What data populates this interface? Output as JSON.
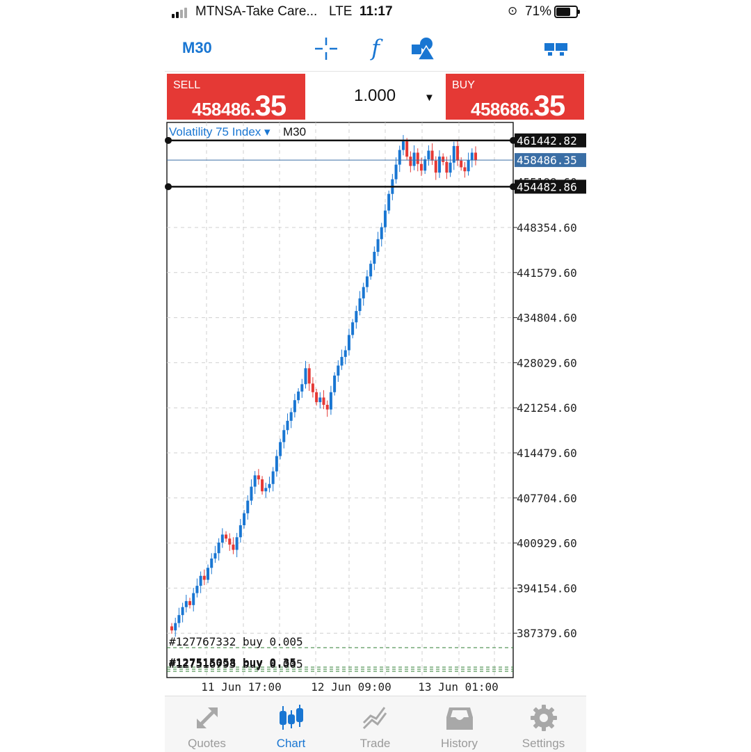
{
  "status_bar": {
    "carrier": "MTNSA-Take Care...",
    "network": "LTE",
    "time": "11:17",
    "battery_percent": "71%",
    "battery_level": 0.71,
    "signal_bars_filled": 2,
    "signal_bars_total": 4
  },
  "toolbar": {
    "timeframe": "M30",
    "icons": [
      "crosshair-icon",
      "indicators-f-icon",
      "objects-icon",
      "windows-icon"
    ],
    "accent": "#1976d2"
  },
  "trade": {
    "sell_label": "SELL",
    "sell_price_small": "458486.",
    "sell_price_big": "35",
    "buy_label": "BUY",
    "buy_price_small": "458686.",
    "buy_price_big": "35",
    "volume": "1.000",
    "volume_arrow": "▼",
    "button_color": "#e53935"
  },
  "chart": {
    "symbol": "Volatility 75 Index ▾",
    "timeframe": "M30",
    "price_labels": [
      "448354.60",
      "441579.60",
      "434804.60",
      "428029.60",
      "421254.60",
      "414479.60",
      "407704.60",
      "400929.60",
      "394154.60",
      "387379.60"
    ],
    "time_labels": [
      "11 Jun 17:00",
      "12 Jun 09:00",
      "13 Jun 01:00"
    ],
    "level_lines": [
      {
        "price": "461442.82",
        "value": 461442.82
      },
      {
        "price": "454482.86",
        "value": 454482.86
      }
    ],
    "bid_line": {
      "price": "458486.35",
      "value": 458486.35,
      "color": "#3a6ea5"
    },
    "hidden_label_fragment": "455199.60",
    "order_labels": [
      {
        "text": "#127767332 buy 0.005",
        "bold": false
      },
      {
        "text": "#127515058 buy 0.35",
        "bold": true
      },
      {
        "text": "#127516793 buy 0.005",
        "bold": false
      }
    ],
    "colors": {
      "bull": "#1976d2",
      "bear": "#e53935",
      "grid": "#cfcfcf",
      "order_line": "#2e7d32"
    }
  },
  "chart_data": {
    "type": "candlestick",
    "title": "",
    "xlabel": "",
    "ylabel": "",
    "x_ticks": [
      "11 Jun 17:00",
      "12 Jun 09:00",
      "13 Jun 01:00"
    ],
    "y_ticks": [
      448354.6,
      441579.6,
      434804.6,
      428029.6,
      421254.6,
      414479.6,
      407704.6,
      400929.6,
      394154.6,
      387379.6
    ],
    "close": [
      387800,
      388900,
      390100,
      391300,
      392200,
      391600,
      393400,
      394500,
      396000,
      395400,
      397200,
      398600,
      399400,
      401000,
      402200,
      401600,
      400700,
      399900,
      401800,
      403600,
      405400,
      407300,
      409400,
      411100,
      410500,
      408700,
      409200,
      409800,
      411700,
      414000,
      416100,
      417900,
      419300,
      420600,
      422400,
      423700,
      424800,
      427200,
      424900,
      423600,
      422100,
      422800,
      421700,
      421000,
      423600,
      426100,
      427600,
      428900,
      429900,
      432200,
      434100,
      435800,
      437700,
      439400,
      441000,
      442900,
      444700,
      446600,
      448400,
      450900,
      453400,
      455600,
      457800,
      460000,
      461300,
      459000,
      457600,
      459600,
      457900,
      456900,
      458600,
      459900,
      458400,
      456600,
      459000,
      458200,
      456600,
      458100,
      460600,
      458400,
      457400,
      456800,
      458500,
      459600,
      458486
    ],
    "ylim": [
      383000,
      464000
    ],
    "level_lines": [
      461442.82,
      454482.86
    ],
    "bid": 458486.35,
    "ask": 458686.35
  }
}
